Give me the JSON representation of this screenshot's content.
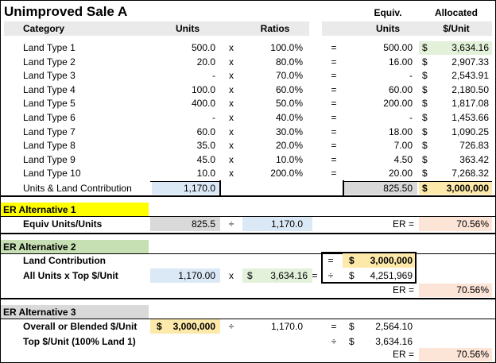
{
  "title": "Unimproved Sale A",
  "colors": {
    "header_gray": "#eaeaea",
    "blue": "#dbe8f6",
    "green": "#e3f0da",
    "yellow_label": "#ffff00",
    "gold": "#fde9a9",
    "pink": "#fce4d6",
    "gray": "#d9d9d9",
    "alt2_green": "#c6e0b4",
    "alt3_gray": "#d9d9d9"
  },
  "headers": {
    "category": "Category",
    "units": "Units",
    "ratios": "Ratios",
    "equiv_top": "Equiv.",
    "equiv_bottom": "Units",
    "alloc_top": "Allocated",
    "alloc_bottom": "$/Unit"
  },
  "rows": [
    {
      "label": "Land Type 1",
      "units": "500.0",
      "x": "x",
      "ratio": "100.0%",
      "eq": "=",
      "equiv": "500.00",
      "cur": "$",
      "alloc": "3,634.16"
    },
    {
      "label": "Land Type 2",
      "units": "20.0",
      "x": "x",
      "ratio": "80.0%",
      "eq": "=",
      "equiv": "16.00",
      "cur": "$",
      "alloc": "2,907.33"
    },
    {
      "label": "Land Type 3",
      "units": "-",
      "x": "x",
      "ratio": "70.0%",
      "eq": "=",
      "equiv": "-",
      "cur": "$",
      "alloc": "2,543.91"
    },
    {
      "label": "Land Type 4",
      "units": "100.0",
      "x": "x",
      "ratio": "60.0%",
      "eq": "=",
      "equiv": "60.00",
      "cur": "$",
      "alloc": "2,180.50"
    },
    {
      "label": "Land Type 5",
      "units": "400.0",
      "x": "x",
      "ratio": "50.0%",
      "eq": "=",
      "equiv": "200.00",
      "cur": "$",
      "alloc": "1,817.08"
    },
    {
      "label": "Land Type 6",
      "units": "-",
      "x": "x",
      "ratio": "40.0%",
      "eq": "=",
      "equiv": "-",
      "cur": "$",
      "alloc": "1,453.66"
    },
    {
      "label": "Land Type 7",
      "units": "60.0",
      "x": "x",
      "ratio": "30.0%",
      "eq": "=",
      "equiv": "18.00",
      "cur": "$",
      "alloc": "1,090.25"
    },
    {
      "label": "Land Type 8",
      "units": "35.0",
      "x": "x",
      "ratio": "20.0%",
      "eq": "=",
      "equiv": "7.00",
      "cur": "$",
      "alloc": "726.83"
    },
    {
      "label": "Land Type 9",
      "units": "45.0",
      "x": "x",
      "ratio": "10.0%",
      "eq": "=",
      "equiv": "4.50",
      "cur": "$",
      "alloc": "363.42"
    },
    {
      "label": "Land Type 10",
      "units": "10.0",
      "x": "x",
      "ratio": "200.0%",
      "eq": "=",
      "equiv": "20.00",
      "cur": "$",
      "alloc": "7,268.32"
    }
  ],
  "total": {
    "label": "Units & Land Contribution",
    "units": "1,170.0",
    "equiv": "825.50",
    "cur": "$",
    "alloc": "3,000,000"
  },
  "alt1": {
    "title": "ER Alternative 1",
    "label": "Equiv Units/Units",
    "v1": "825.5",
    "op": "÷",
    "v2": "1,170.0",
    "er_label": "ER =",
    "er": "70.56%"
  },
  "alt2": {
    "title": "ER Alternative 2",
    "label1": "Land Contribution",
    "label2": "All Units x Top $/Unit",
    "v1": "1,170.00",
    "x": "x",
    "cur": "$",
    "v2": "3,634.16",
    "eq": "=",
    "box_eq": "=",
    "box_div": "÷",
    "box_cur1": "$",
    "box_v1": "3,000,000",
    "box_cur2": "$",
    "box_v2": "4,251,969",
    "er_label": "ER =",
    "er": "70.56%"
  },
  "alt3": {
    "title": "ER Alternative 3",
    "label1": "Overall or Blended $/Unit",
    "label2": "Top $/Unit (100% Land 1)",
    "cur1": "$",
    "v1": "3,000,000",
    "op": "÷",
    "v2": "1,170.0",
    "eq": "=",
    "cur2": "$",
    "v3": "2,564.10",
    "div": "÷",
    "cur3": "$",
    "v4": "3,634.16",
    "er_label": "ER =",
    "er": "70.56%"
  }
}
